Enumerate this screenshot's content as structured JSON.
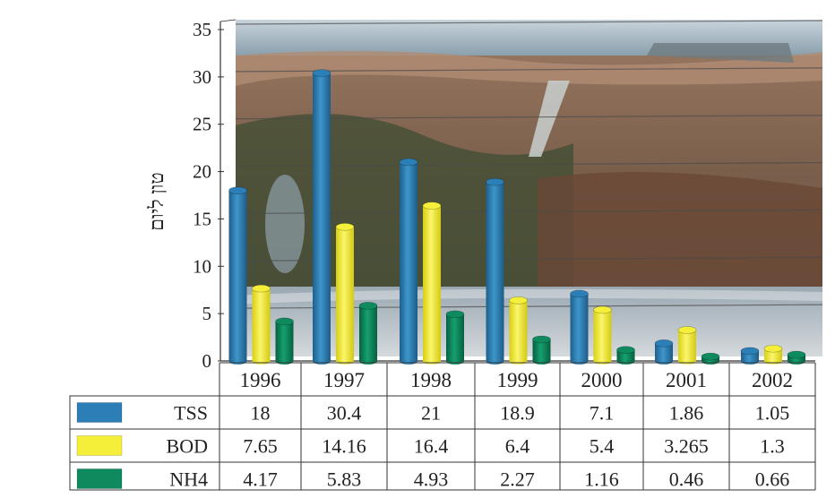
{
  "chart_data": {
    "type": "bar",
    "ylabel": "טון ליום",
    "ylim": [
      0,
      35
    ],
    "yticks": [
      0,
      5,
      10,
      15,
      20,
      25,
      30,
      35
    ],
    "grid": true,
    "categories": [
      "1996",
      "1997",
      "1998",
      "1999",
      "2000",
      "2001",
      "2002"
    ],
    "series": [
      {
        "name": "TSS",
        "color": "#2b7fb6",
        "values": [
          18,
          30.4,
          21,
          18.9,
          7.1,
          1.86,
          1.05
        ],
        "labels": [
          "18",
          "30.4",
          "21",
          "18.9",
          "7.1",
          "1.86",
          "1.05"
        ]
      },
      {
        "name": "BOD",
        "color": "#f5ef3a",
        "values": [
          7.65,
          14.16,
          16.4,
          6.4,
          5.4,
          3.265,
          1.3
        ],
        "labels": [
          "7.65",
          "14.16",
          "16.4",
          "6.4",
          "5.4",
          "3.265",
          "1.3"
        ]
      },
      {
        "name": "NH4",
        "color": "#0e8a5e",
        "values": [
          4.17,
          5.83,
          4.93,
          2.27,
          1.16,
          0.46,
          0.66
        ],
        "labels": [
          "4.17",
          "5.83",
          "4.93",
          "2.27",
          "1.16",
          "0.46",
          "0.66"
        ]
      }
    ],
    "background": "photograph"
  }
}
